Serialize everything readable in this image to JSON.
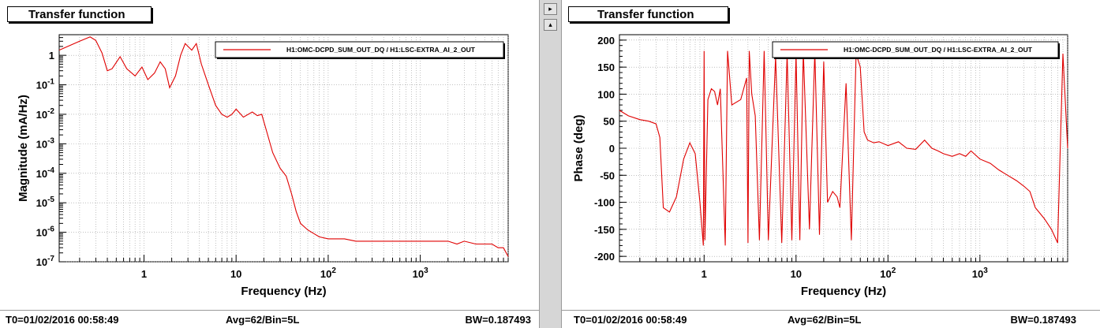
{
  "left_panel": {
    "title": "Transfer function",
    "footer": {
      "t0": "T0=01/02/2016 00:58:49",
      "avg": "Avg=62/Bin=5L",
      "bw": "BW=0.187493"
    }
  },
  "right_panel": {
    "title": "Transfer function",
    "footer": {
      "t0": "T0=01/02/2016 00:58:49",
      "avg": "Avg=62/Bin=5L",
      "bw": "BW=0.187493"
    }
  },
  "scroll": {
    "up_glyph": "▸",
    "down_glyph": "▴"
  },
  "colors": {
    "trace": "#e00000",
    "grid": "#9a9a9a",
    "axis": "#000000"
  },
  "chart_data": [
    {
      "type": "line",
      "title": "",
      "xlabel": "Frequency (Hz)",
      "ylabel": "Magnitude (mA/Hz)",
      "xscale": "log",
      "yscale": "log",
      "xlim": [
        0.12,
        9000
      ],
      "ylim": [
        1e-07,
        5
      ],
      "xticks": [
        {
          "v": 1,
          "label": "1"
        },
        {
          "v": 10,
          "label": "10"
        },
        {
          "v": 100,
          "label": "10^2"
        },
        {
          "v": 1000,
          "label": "10^3"
        }
      ],
      "yticks": [
        {
          "v": 1,
          "label": "1"
        },
        {
          "v": 0.1,
          "label": "10^-1"
        },
        {
          "v": 0.01,
          "label": "10^-2"
        },
        {
          "v": 0.001,
          "label": "10^-3"
        },
        {
          "v": 0.0001,
          "label": "10^-4"
        },
        {
          "v": 1e-05,
          "label": "10^-5"
        },
        {
          "v": 1e-06,
          "label": "10^-6"
        },
        {
          "v": 1e-07,
          "label": "10^-7"
        }
      ],
      "grid": true,
      "legend": {
        "position": "top-right",
        "entries": [
          "H1:OMC-DCPD_SUM_OUT_DQ / H1:LSC-EXTRA_AI_2_OUT"
        ]
      },
      "series": [
        {
          "name": "H1:OMC-DCPD_SUM_OUT_DQ / H1:LSC-EXTRA_AI_2_OUT",
          "x": [
            0.12,
            0.2,
            0.26,
            0.3,
            0.35,
            0.4,
            0.45,
            0.55,
            0.65,
            0.8,
            0.95,
            1.1,
            1.3,
            1.5,
            1.7,
            1.9,
            2.2,
            2.5,
            2.8,
            3.0,
            3.3,
            3.7,
            4.2,
            5,
            6,
            7,
            8,
            9,
            10,
            12,
            15,
            17,
            19,
            22,
            25,
            30,
            35,
            40,
            45,
            50,
            60,
            70,
            80,
            100,
            120,
            150,
            200,
            300,
            400,
            500,
            700,
            1000,
            1500,
            2000,
            2500,
            3000,
            4000,
            5000,
            6000,
            7000,
            8000,
            9000
          ],
          "y": [
            1.5,
            3.0,
            4.2,
            3.2,
            1.2,
            0.3,
            0.35,
            0.9,
            0.35,
            0.2,
            0.4,
            0.15,
            0.25,
            0.6,
            0.35,
            0.08,
            0.2,
            1.0,
            2.5,
            2.0,
            1.5,
            2.5,
            0.5,
            0.1,
            0.02,
            0.01,
            0.008,
            0.01,
            0.015,
            0.008,
            0.012,
            0.009,
            0.01,
            0.002,
            0.0005,
            0.00015,
            8e-05,
            2e-05,
            5e-06,
            2e-06,
            1.2e-06,
            9e-07,
            7e-07,
            6e-07,
            6e-07,
            6e-07,
            5e-07,
            5e-07,
            5e-07,
            5e-07,
            5e-07,
            5e-07,
            5e-07,
            5e-07,
            4e-07,
            5e-07,
            4e-07,
            4e-07,
            4e-07,
            3e-07,
            3e-07,
            1.5e-07
          ]
        }
      ]
    },
    {
      "type": "line",
      "title": "",
      "xlabel": "Frequency (Hz)",
      "ylabel": "Phase (deg)",
      "xscale": "log",
      "yscale": "linear",
      "xlim": [
        0.12,
        9000
      ],
      "ylim": [
        -210,
        210
      ],
      "xticks": [
        {
          "v": 1,
          "label": "1"
        },
        {
          "v": 10,
          "label": "10"
        },
        {
          "v": 100,
          "label": "10^2"
        },
        {
          "v": 1000,
          "label": "10^3"
        }
      ],
      "yticks": [
        {
          "v": 200,
          "label": "200"
        },
        {
          "v": 150,
          "label": "150"
        },
        {
          "v": 100,
          "label": "100"
        },
        {
          "v": 50,
          "label": "50"
        },
        {
          "v": 0,
          "label": "0"
        },
        {
          "v": -50,
          "label": "-50"
        },
        {
          "v": -100,
          "label": "-100"
        },
        {
          "v": -150,
          "label": "-150"
        },
        {
          "v": -200,
          "label": "-200"
        }
      ],
      "grid": true,
      "legend": {
        "position": "top-right",
        "entries": [
          "H1:OMC-DCPD_SUM_OUT_DQ / H1:LSC-EXTRA_AI_2_OUT"
        ]
      },
      "series": [
        {
          "name": "H1:OMC-DCPD_SUM_OUT_DQ / H1:LSC-EXTRA_AI_2_OUT",
          "x": [
            0.12,
            0.15,
            0.2,
            0.25,
            0.3,
            0.33,
            0.36,
            0.42,
            0.5,
            0.6,
            0.7,
            0.8,
            0.9,
            0.98,
            1.0,
            1.02,
            1.1,
            1.2,
            1.3,
            1.4,
            1.5,
            1.7,
            1.8,
            2.0,
            2.5,
            2.9,
            3.0,
            3.1,
            3.3,
            3.6,
            4.0,
            4.5,
            5,
            6,
            7,
            8,
            9,
            10,
            11,
            12,
            14,
            16,
            18,
            20,
            22,
            25,
            28,
            30,
            35,
            40,
            45,
            50,
            55,
            60,
            70,
            80,
            100,
            130,
            160,
            200,
            250,
            300,
            350,
            400,
            500,
            600,
            700,
            800,
            1000,
            1300,
            1600,
            2000,
            2500,
            3000,
            3500,
            4000,
            5000,
            6000,
            7000,
            8000,
            9000
          ],
          "y": [
            70,
            60,
            53,
            50,
            45,
            20,
            -110,
            -118,
            -90,
            -20,
            10,
            -10,
            -100,
            -180,
            180,
            -170,
            90,
            110,
            105,
            80,
            110,
            -180,
            180,
            80,
            90,
            130,
            -175,
            180,
            100,
            60,
            -170,
            180,
            -170,
            170,
            -175,
            175,
            -170,
            175,
            -170,
            180,
            -150,
            180,
            -160,
            160,
            -100,
            -80,
            -90,
            -110,
            120,
            -170,
            175,
            150,
            30,
            15,
            10,
            12,
            5,
            12,
            0,
            -2,
            15,
            0,
            -5,
            -10,
            -15,
            -10,
            -15,
            -5,
            -20,
            -28,
            -40,
            -50,
            -60,
            -70,
            -80,
            -110,
            -130,
            -150,
            -175,
            175,
            0
          ]
        }
      ]
    }
  ]
}
